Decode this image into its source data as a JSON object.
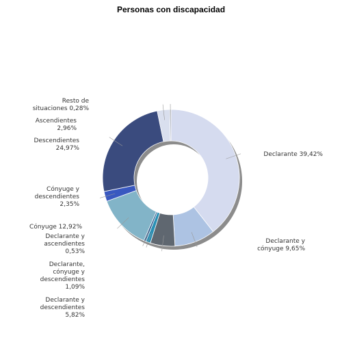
{
  "chart_data": {
    "type": "pie",
    "title": "Personas con discapacidad",
    "donut": true,
    "slices": [
      {
        "label": "Declarante",
        "value": 39.42,
        "value_label": "39,42%",
        "color": "#d5dbef"
      },
      {
        "label": "Declarante y cónyuge",
        "value": 9.65,
        "value_label": "9,65%",
        "color": "#adc3e3"
      },
      {
        "label": "Declarante y descendientes",
        "value": 5.82,
        "value_label": "5,82%",
        "color": "#5f6770"
      },
      {
        "label": "Declarante, cónyuge y descendientes",
        "value": 1.09,
        "value_label": "1,09%",
        "color": "#2a8fb4"
      },
      {
        "label": "Declarante y ascendientes",
        "value": 0.53,
        "value_label": "0,53%",
        "color": "#2c5a8c"
      },
      {
        "label": "Cónyuge",
        "value": 12.92,
        "value_label": "12,92%",
        "color": "#82b4c8"
      },
      {
        "label": "Cónyuge y descendientes",
        "value": 2.35,
        "value_label": "2,35%",
        "color": "#3958c0"
      },
      {
        "label": "Descendientes",
        "value": 24.97,
        "value_label": "24,97%",
        "color": "#3a4b7e"
      },
      {
        "label": "Ascendientes",
        "value": 2.96,
        "value_label": "2,96%",
        "color": "#d9dfee"
      },
      {
        "label": "Resto de situaciones",
        "value": 0.28,
        "value_label": "0,28%",
        "color": "#7d879a"
      }
    ]
  }
}
